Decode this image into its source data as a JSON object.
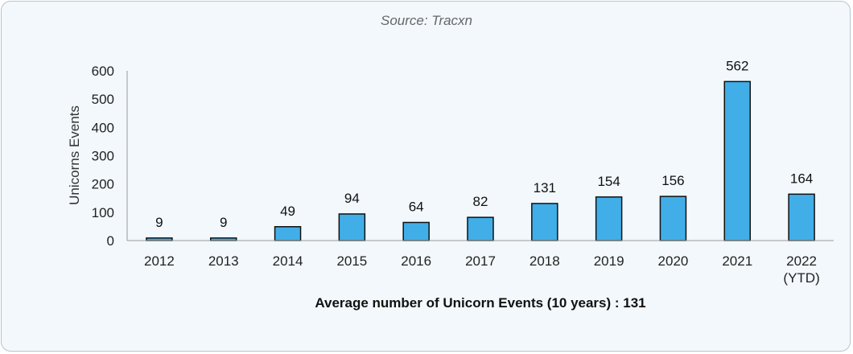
{
  "source": "Source: Tracxn",
  "chart_data": {
    "type": "bar",
    "title": "",
    "categories": [
      "2012",
      "2013",
      "2014",
      "2015",
      "2016",
      "2017",
      "2018",
      "2019",
      "2020",
      "2021",
      "2022 (YTD)"
    ],
    "category_lines": [
      [
        "2012"
      ],
      [
        "2013"
      ],
      [
        "2014"
      ],
      [
        "2015"
      ],
      [
        "2016"
      ],
      [
        "2017"
      ],
      [
        "2018"
      ],
      [
        "2019"
      ],
      [
        "2020"
      ],
      [
        "2021"
      ],
      [
        "2022",
        "(YTD)"
      ]
    ],
    "values": [
      9,
      9,
      49,
      94,
      64,
      82,
      131,
      154,
      156,
      562,
      164
    ],
    "ylabel": "Unicorns Events",
    "xlabel": "",
    "ylim": [
      0,
      600
    ],
    "yticks": [
      0,
      100,
      200,
      300,
      400,
      500,
      600
    ],
    "bar_color": "#41aee8",
    "annotation": "Average number of Unicorn Events (10 years) : 131",
    "grid": false
  }
}
